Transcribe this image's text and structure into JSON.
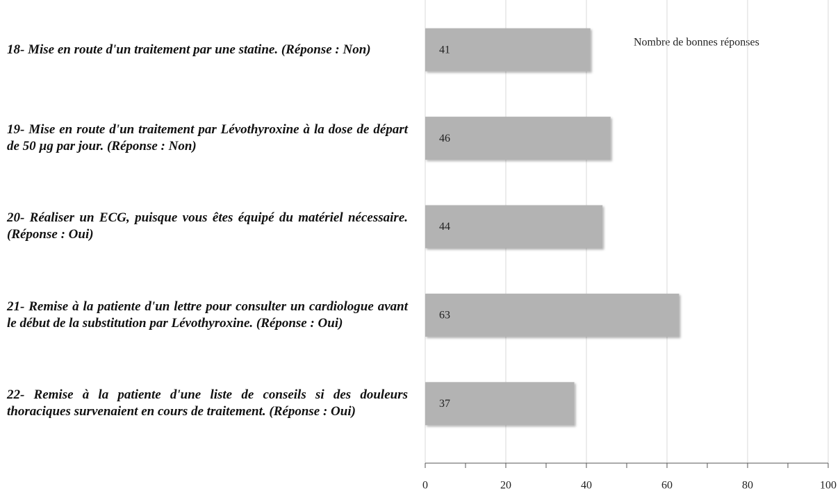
{
  "chart_data": {
    "type": "barh",
    "annotation": "Nombre de bonnes réponses",
    "categories": [
      "18- Mise en route d'un traitement par une statine. (Réponse : Non)",
      "19- Mise en route d'un traitement par Lévothyroxine à la dose de départ de 50 µg par jour. (Réponse : Non)",
      "20- Réaliser un ECG, puisque vous êtes équipé du matériel nécessaire. (Réponse : Oui)",
      "21- Remise à la patiente d'un lettre pour consulter un cardiologue avant le début de la substitution par Lévothyroxine. (Réponse : Oui)",
      "22- Remise à la patiente d'une liste de conseils si des douleurs thoraciques survenaient en cours de traitement. (Réponse : Oui)"
    ],
    "values": [
      41,
      46,
      44,
      63,
      37
    ],
    "color": "#b3b3b3",
    "xlim": [
      0,
      100
    ],
    "xticks": [
      0,
      20,
      40,
      60,
      80,
      100
    ],
    "xminorticks": [
      10,
      30,
      50,
      70,
      90
    ],
    "grid": true
  }
}
